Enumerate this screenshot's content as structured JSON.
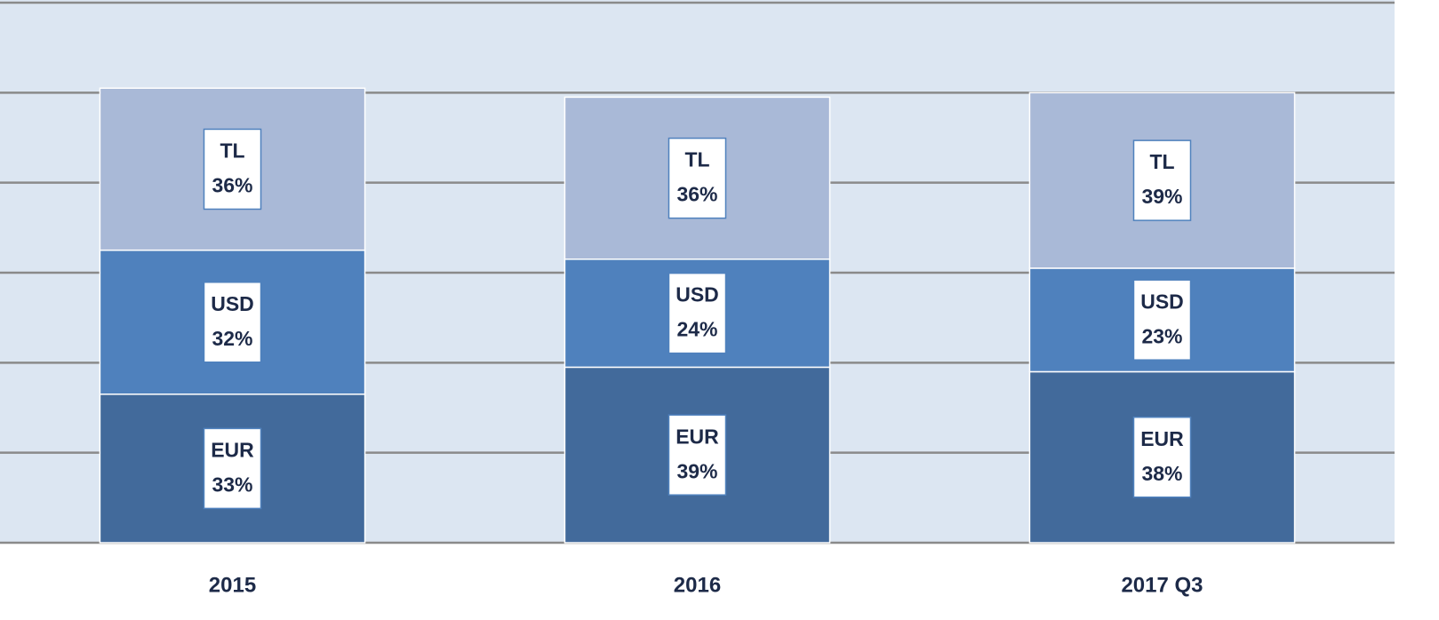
{
  "chart_data": {
    "type": "stacked_bar",
    "categories": [
      "2015",
      "2016",
      "2017 Q3"
    ],
    "series": [
      {
        "name": "EUR",
        "color": "#426a9b",
        "values": [
          33,
          39,
          38
        ],
        "value_labels": [
          "33%",
          "39%",
          "38%"
        ]
      },
      {
        "name": "USD",
        "color": "#4f81bd",
        "values": [
          32,
          24,
          23
        ],
        "value_labels": [
          "32%",
          "24%",
          "23%"
        ]
      },
      {
        "name": "TL",
        "color": "#a9b9d7",
        "values": [
          36,
          36,
          39
        ],
        "value_labels": [
          "36%",
          "36%",
          "39%"
        ]
      }
    ],
    "ylim": [
      0,
      120
    ],
    "yticks": [
      0,
      20,
      40,
      60,
      80,
      100,
      120
    ],
    "grid": true
  }
}
